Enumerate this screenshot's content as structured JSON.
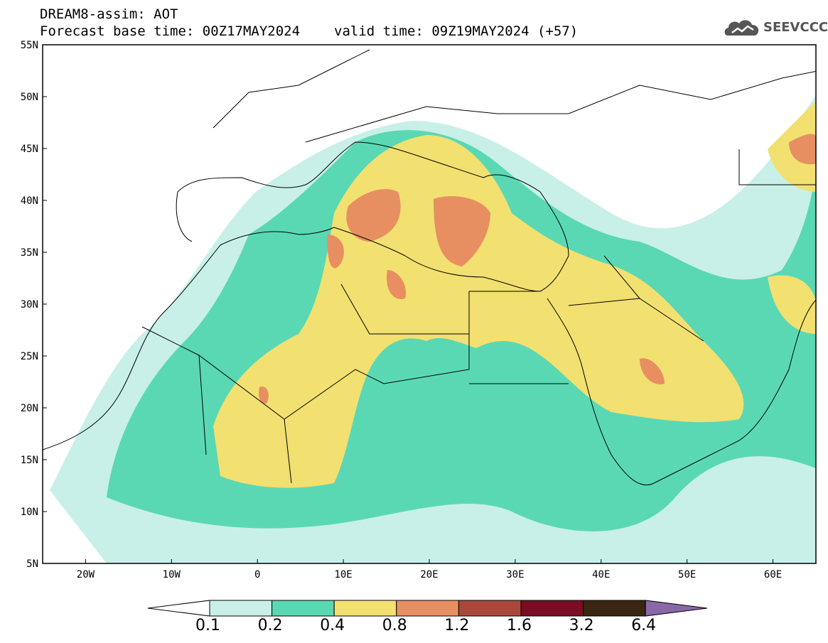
{
  "header": {
    "line1": "DREAM8-assim: AOT",
    "base_time_label": "Forecast base time: 00Z17MAY2024",
    "valid_time_label": "valid time: 09Z19MAY2024 (+57)"
  },
  "logo": {
    "name": "cloud-logo-icon",
    "text": "SEEVCCC"
  },
  "map": {
    "lon_range": [
      -25,
      65
    ],
    "lat_range": [
      5,
      55
    ],
    "lon_ticks": [
      {
        "value": -20,
        "label": "20W"
      },
      {
        "value": -10,
        "label": "10W"
      },
      {
        "value": 0,
        "label": "0"
      },
      {
        "value": 10,
        "label": "10E"
      },
      {
        "value": 20,
        "label": "20E"
      },
      {
        "value": 30,
        "label": "30E"
      },
      {
        "value": 40,
        "label": "40E"
      },
      {
        "value": 50,
        "label": "50E"
      },
      {
        "value": 60,
        "label": "60E"
      }
    ],
    "lat_ticks": [
      {
        "value": 55,
        "label": "55N"
      },
      {
        "value": 50,
        "label": "50N"
      },
      {
        "value": 45,
        "label": "45N"
      },
      {
        "value": 40,
        "label": "40N"
      },
      {
        "value": 35,
        "label": "35N"
      },
      {
        "value": 30,
        "label": "30N"
      },
      {
        "value": 25,
        "label": "25N"
      },
      {
        "value": 20,
        "label": "20N"
      },
      {
        "value": 15,
        "label": "15N"
      },
      {
        "value": 10,
        "label": "10N"
      },
      {
        "value": 5,
        "label": "5N"
      }
    ]
  },
  "colorbar": {
    "colors": [
      "#c8f0e8",
      "#5ad8b4",
      "#f2e071",
      "#e88f62",
      "#a9483a",
      "#7a0d22",
      "#3a2510",
      "#8a68a8"
    ],
    "labels": [
      "0.1",
      "0.2",
      "0.4",
      "0.8",
      "1.2",
      "1.6",
      "3.2",
      "6.4"
    ]
  }
}
